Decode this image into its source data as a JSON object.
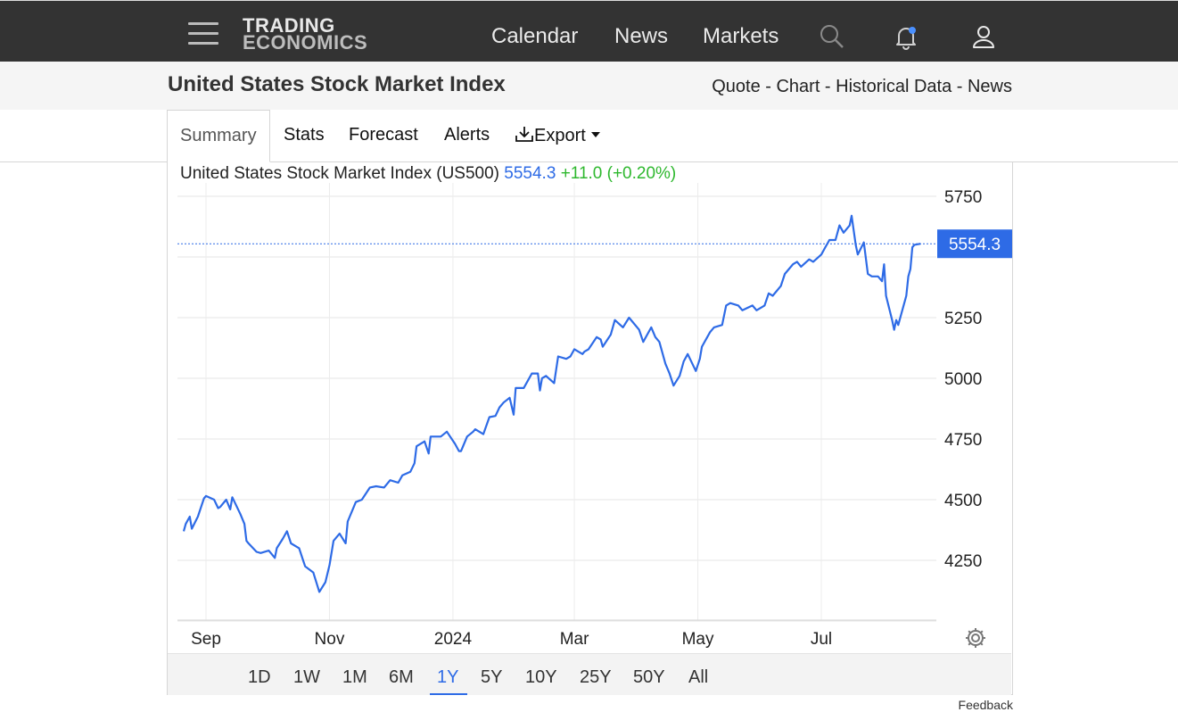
{
  "header": {
    "logo_line1": "TRADING",
    "logo_line2": "ECONOMICS",
    "nav": [
      "Calendar",
      "News",
      "Markets"
    ],
    "icons": [
      "menu-icon",
      "search-icon",
      "bell-icon",
      "user-icon"
    ],
    "notification_dot_color": "#4a90ff"
  },
  "page": {
    "title": "United States Stock Market Index",
    "breadcrumb": [
      "Quote",
      "Chart",
      "Historical Data",
      "News"
    ],
    "breadcrumb_sep": " - "
  },
  "tabs": [
    "Summary",
    "Stats",
    "Forecast",
    "Alerts",
    "Export"
  ],
  "quote": {
    "name": "United States Stock Market Index (US500)",
    "price": "5554.3",
    "change": "+11.0 (+0.20%)"
  },
  "ranges": [
    "1D",
    "1W",
    "1M",
    "6M",
    "1Y",
    "5Y",
    "10Y",
    "25Y",
    "50Y",
    "All"
  ],
  "active_range": "1Y",
  "feedback": "Feedback",
  "chart_data": {
    "type": "line",
    "title": "",
    "xlabel": "",
    "ylabel": "",
    "ylim": [
      4000,
      5850
    ],
    "yticks": [
      4250,
      4500,
      4750,
      5000,
      5250,
      5750
    ],
    "xtick_labels": [
      "Sep",
      "Nov",
      "2024",
      "Mar",
      "May",
      "Jul"
    ],
    "last_value_label": "5554.3",
    "last_value": 5554.3,
    "grid": true,
    "line_color": "#2e6be6",
    "series": [
      {
        "name": "US500",
        "x": [
          "2023-08-21",
          "2023-08-22",
          "2023-08-24",
          "2023-08-25",
          "2023-08-28",
          "2023-08-31",
          "2023-09-01",
          "2023-09-05",
          "2023-09-07",
          "2023-09-08",
          "2023-09-11",
          "2023-09-13",
          "2023-09-14",
          "2023-09-18",
          "2023-09-20",
          "2023-09-21",
          "2023-09-22",
          "2023-09-26",
          "2023-09-28",
          "2023-10-02",
          "2023-10-05",
          "2023-10-06",
          "2023-10-09",
          "2023-10-11",
          "2023-10-13",
          "2023-10-17",
          "2023-10-19",
          "2023-10-20",
          "2023-10-24",
          "2023-10-27",
          "2023-10-30",
          "2023-11-01",
          "2023-11-03",
          "2023-11-06",
          "2023-11-09",
          "2023-11-10",
          "2023-11-14",
          "2023-11-17",
          "2023-11-21",
          "2023-11-24",
          "2023-11-28",
          "2023-12-01",
          "2023-12-05",
          "2023-12-07",
          "2023-12-11",
          "2023-12-13",
          "2023-12-14",
          "2023-12-18",
          "2023-12-20",
          "2023-12-21",
          "2023-12-26",
          "2023-12-29",
          "2024-01-02",
          "2024-01-04",
          "2024-01-05",
          "2024-01-08",
          "2024-01-11",
          "2024-01-12",
          "2024-01-16",
          "2024-01-19",
          "2024-01-22",
          "2024-01-24",
          "2024-01-26",
          "2024-01-29",
          "2024-01-31",
          "2024-02-01",
          "2024-02-05",
          "2024-02-07",
          "2024-02-09",
          "2024-02-12",
          "2024-02-13",
          "2024-02-14",
          "2024-02-16",
          "2024-02-20",
          "2024-02-22",
          "2024-02-26",
          "2024-02-28",
          "2024-03-01",
          "2024-03-05",
          "2024-03-06",
          "2024-03-08",
          "2024-03-12",
          "2024-03-14",
          "2024-03-15",
          "2024-03-19",
          "2024-03-21",
          "2024-03-25",
          "2024-03-28",
          "2024-04-02",
          "2024-04-04",
          "2024-04-08",
          "2024-04-10",
          "2024-04-12",
          "2024-04-15",
          "2024-04-17",
          "2024-04-19",
          "2024-04-22",
          "2024-04-24",
          "2024-04-26",
          "2024-04-30",
          "2024-05-02",
          "2024-05-03",
          "2024-05-07",
          "2024-05-09",
          "2024-05-13",
          "2024-05-15",
          "2024-05-17",
          "2024-05-21",
          "2024-05-23",
          "2024-05-28",
          "2024-05-30",
          "2024-06-03",
          "2024-06-05",
          "2024-06-07",
          "2024-06-11",
          "2024-06-13",
          "2024-06-17",
          "2024-06-19",
          "2024-06-21",
          "2024-06-25",
          "2024-06-27",
          "2024-07-01",
          "2024-07-03",
          "2024-07-05",
          "2024-07-08",
          "2024-07-10",
          "2024-07-12",
          "2024-07-15",
          "2024-07-16",
          "2024-07-18",
          "2024-07-19",
          "2024-07-22",
          "2024-07-24",
          "2024-07-26",
          "2024-07-29",
          "2024-07-31",
          "2024-08-01",
          "2024-08-02",
          "2024-08-05",
          "2024-08-06",
          "2024-08-07",
          "2024-08-08",
          "2024-08-12",
          "2024-08-13",
          "2024-08-14",
          "2024-08-15",
          "2024-08-16",
          "2024-08-19"
        ],
        "values": [
          4370,
          4400,
          4430,
          4380,
          4430,
          4505,
          4515,
          4500,
          4465,
          4470,
          4500,
          4460,
          4510,
          4440,
          4400,
          4330,
          4320,
          4285,
          4280,
          4290,
          4260,
          4300,
          4340,
          4370,
          4320,
          4300,
          4250,
          4225,
          4200,
          4120,
          4160,
          4230,
          4330,
          4360,
          4320,
          4410,
          4490,
          4500,
          4550,
          4555,
          4550,
          4580,
          4570,
          4600,
          4615,
          4650,
          4720,
          4740,
          4690,
          4760,
          4760,
          4780,
          4730,
          4700,
          4700,
          4760,
          4780,
          4790,
          4770,
          4840,
          4845,
          4880,
          4900,
          4920,
          4850,
          4960,
          4960,
          4990,
          5020,
          5020,
          4950,
          5000,
          5010,
          4980,
          5090,
          5080,
          5090,
          5120,
          5100,
          5110,
          5120,
          5170,
          5160,
          5130,
          5180,
          5240,
          5210,
          5250,
          5200,
          5150,
          5210,
          5170,
          5150,
          5060,
          5020,
          4970,
          5010,
          5070,
          5100,
          5030,
          5080,
          5130,
          5190,
          5210,
          5220,
          5300,
          5310,
          5300,
          5280,
          5300,
          5280,
          5300,
          5350,
          5340,
          5380,
          5430,
          5470,
          5480,
          5460,
          5490,
          5480,
          5510,
          5540,
          5570,
          5570,
          5630,
          5600,
          5630,
          5670,
          5550,
          5510,
          5560,
          5430,
          5420,
          5420,
          5400,
          5470,
          5340,
          5240,
          5200,
          5240,
          5220,
          5340,
          5420,
          5450,
          5540,
          5550,
          5554.3
        ]
      }
    ]
  }
}
